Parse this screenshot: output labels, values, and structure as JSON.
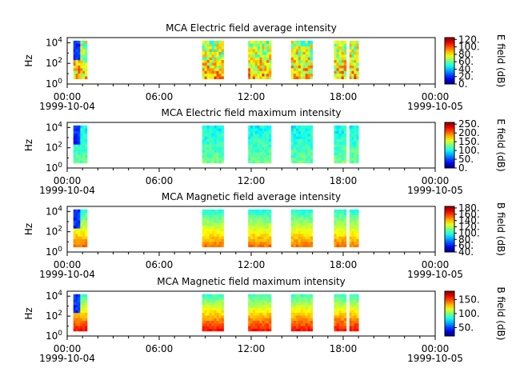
{
  "figure": {
    "x_tick_labels": [
      "00:00",
      "06:00",
      "12:00",
      "18:00",
      "00:00"
    ],
    "x_start_date": "1999-10-04",
    "x_end_date": "1999-10-05"
  },
  "chart_data": [
    {
      "type": "heatmap",
      "title": "MCA  Electric field average intensity",
      "ylabel": "Hz",
      "colorbar_label": "E field (dB)",
      "colorbar_ticks": [
        "0.",
        "20.",
        "40.",
        "60.",
        "80.",
        "100.",
        "120."
      ],
      "colorbar_range": [
        0,
        125
      ],
      "y_ticks": [
        "10^0",
        "10^2",
        "10^4"
      ],
      "y_range_exp": [
        0,
        4.5
      ],
      "x_range_hours": [
        0,
        24
      ],
      "intervals_hours": [
        [
          0.4,
          1.3
        ],
        [
          8.8,
          10.2
        ],
        [
          11.8,
          13.3
        ],
        [
          14.6,
          16.0
        ],
        [
          17.4,
          18.2
        ],
        [
          18.4,
          19.0
        ]
      ],
      "base_level": 65
    },
    {
      "type": "heatmap",
      "title": "MCA  Electric field maximum intensity",
      "ylabel": "Hz",
      "colorbar_label": "E field (dB)",
      "colorbar_ticks": [
        "0.",
        "50.",
        "100.",
        "150.",
        "200.",
        "250."
      ],
      "colorbar_range": [
        0,
        260
      ],
      "y_ticks": [
        "10^0",
        "10^2",
        "10^4"
      ],
      "y_range_exp": [
        0,
        4.5
      ],
      "x_range_hours": [
        0,
        24
      ],
      "intervals_hours": [
        [
          0.4,
          1.3
        ],
        [
          8.8,
          10.2
        ],
        [
          11.8,
          13.3
        ],
        [
          14.6,
          16.0
        ],
        [
          17.4,
          18.2
        ],
        [
          18.4,
          19.0
        ]
      ],
      "base_level": 100
    },
    {
      "type": "heatmap",
      "title": "MCA  Magnetic field average intensity",
      "ylabel": "Hz",
      "colorbar_label": "B field (dB)",
      "colorbar_ticks": [
        "40.",
        "60.",
        "80.",
        "100.",
        "120.",
        "140.",
        "160.",
        "180."
      ],
      "colorbar_range": [
        40,
        185
      ],
      "y_ticks": [
        "10^0",
        "10^2",
        "10^4"
      ],
      "y_range_exp": [
        0,
        4.5
      ],
      "x_range_hours": [
        0,
        24
      ],
      "intervals_hours": [
        [
          0.4,
          1.3
        ],
        [
          8.8,
          10.2
        ],
        [
          11.8,
          13.3
        ],
        [
          14.6,
          16.0
        ],
        [
          17.4,
          18.2
        ],
        [
          18.4,
          19.0
        ]
      ],
      "base_level": 120
    },
    {
      "type": "heatmap",
      "title": "MCA  Magnetic field maximum intensity",
      "ylabel": "Hz",
      "colorbar_label": "B field (dB)",
      "colorbar_ticks": [
        "50.",
        "100.",
        "150."
      ],
      "colorbar_range": [
        20,
        180
      ],
      "y_ticks": [
        "10^0",
        "10^2",
        "10^4"
      ],
      "y_range_exp": [
        0,
        4.5
      ],
      "x_range_hours": [
        0,
        24
      ],
      "intervals_hours": [
        [
          0.4,
          1.3
        ],
        [
          8.8,
          10.2
        ],
        [
          11.8,
          13.3
        ],
        [
          14.6,
          16.0
        ],
        [
          17.4,
          18.2
        ],
        [
          18.4,
          19.0
        ]
      ],
      "base_level": 110
    }
  ]
}
